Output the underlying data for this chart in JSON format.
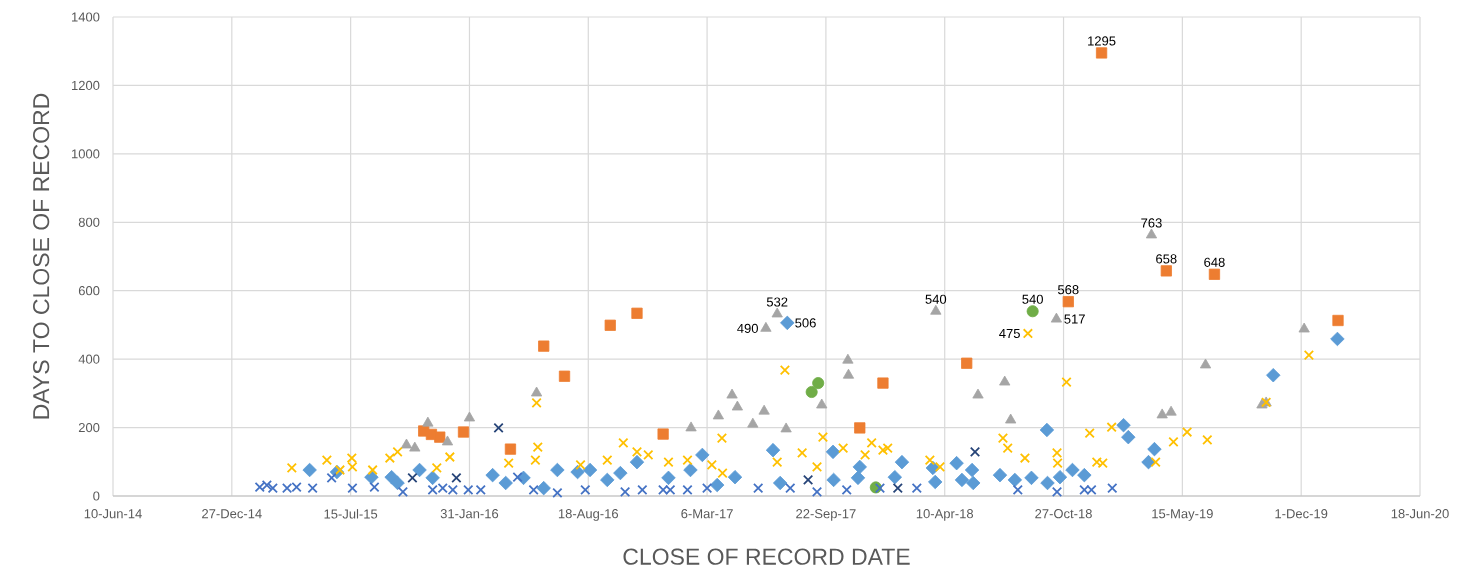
{
  "chart_data": {
    "type": "scatter",
    "xlabel": "CLOSE OF RECORD DATE",
    "ylabel": "DAYS TO CLOSE OF RECORD",
    "xlim": [
      "2014-06-10",
      "2020-06-18"
    ],
    "ylim": [
      0,
      1400
    ],
    "xticks": [
      {
        "value": "2014-06-10",
        "label": "10-Jun-14"
      },
      {
        "value": "2014-12-27",
        "label": "27-Dec-14"
      },
      {
        "value": "2015-07-15",
        "label": "15-Jul-15"
      },
      {
        "value": "2016-01-31",
        "label": "31-Jan-16"
      },
      {
        "value": "2016-08-18",
        "label": "18-Aug-16"
      },
      {
        "value": "2017-03-06",
        "label": "6-Mar-17"
      },
      {
        "value": "2017-09-22",
        "label": "22-Sep-17"
      },
      {
        "value": "2018-04-10",
        "label": "10-Apr-18"
      },
      {
        "value": "2018-10-27",
        "label": "27-Oct-18"
      },
      {
        "value": "2019-05-15",
        "label": "15-May-19"
      },
      {
        "value": "2019-12-01",
        "label": "1-Dec-19"
      },
      {
        "value": "2020-06-18",
        "label": "18-Jun-20"
      }
    ],
    "yticks": [
      0,
      200,
      400,
      600,
      800,
      1000,
      1200,
      1400
    ],
    "grid": true,
    "series": [
      {
        "color": "#5b9bd5",
        "marker": "diamond",
        "x": [
          "2015-05-07",
          "2015-06-22",
          "2015-08-19",
          "2015-09-22",
          "2015-10-02",
          "2015-11-08",
          "2015-11-30",
          "2016-03-10",
          "2016-04-01",
          "2016-05-01",
          "2016-06-04",
          "2016-06-27",
          "2016-07-31",
          "2016-08-21",
          "2016-09-19",
          "2016-10-11",
          "2016-11-08",
          "2016-12-31",
          "2017-02-06",
          "2017-02-26",
          "2017-03-23",
          "2017-04-22",
          "2017-06-25",
          "2017-07-07",
          "2017-07-19",
          "2017-10-04",
          "2017-10-05",
          "2017-11-15",
          "2017-11-18",
          "2018-01-16",
          "2018-01-28",
          "2018-03-21",
          "2018-03-25",
          "2018-04-30",
          "2018-05-09",
          "2018-05-26",
          "2018-05-28",
          "2018-07-12",
          "2018-08-06",
          "2018-09-03",
          "2018-09-29",
          "2018-09-30",
          "2018-10-21",
          "2018-11-11",
          "2018-12-01",
          "2019-02-05",
          "2019-02-13",
          "2019-03-19",
          "2019-03-29",
          "2019-10-15",
          "2020-01-31"
        ],
        "values": [
          76,
          70,
          55,
          55,
          38,
          76,
          53,
          61,
          38,
          53,
          23,
          76,
          70,
          76,
          47,
          67,
          99,
          53,
          76,
          120,
          32,
          55,
          134,
          38,
          506,
          129,
          47,
          53,
          85,
          55,
          99,
          82,
          41,
          96,
          47,
          76,
          38,
          61,
          47,
          53,
          193,
          38,
          55,
          76,
          61,
          207,
          172,
          99,
          137,
          353,
          459
        ],
        "value_labels": [
          null,
          null,
          null,
          null,
          null,
          null,
          null,
          null,
          null,
          null,
          null,
          null,
          null,
          null,
          null,
          null,
          null,
          null,
          null,
          null,
          null,
          null,
          null,
          null,
          "506",
          null,
          null,
          null,
          null,
          null,
          null,
          null,
          null,
          null,
          null,
          null,
          null,
          null,
          null,
          null,
          null,
          null,
          null,
          null,
          null,
          null,
          null,
          null,
          null,
          null,
          null
        ]
      },
      {
        "color": "#ed7d31",
        "marker": "square",
        "x": [
          "2015-11-15",
          "2015-11-28",
          "2015-12-12",
          "2016-01-21",
          "2016-04-09",
          "2016-06-04",
          "2016-07-09",
          "2016-09-24",
          "2016-11-08",
          "2016-12-22",
          "2017-11-18",
          "2017-12-27",
          "2018-05-17",
          "2018-11-04",
          "2018-12-30",
          "2019-04-18",
          "2019-07-08",
          "2020-02-01"
        ],
        "values": [
          190,
          180,
          172,
          187,
          137,
          438,
          350,
          499,
          534,
          181,
          199,
          330,
          388,
          568,
          1295,
          658,
          648,
          513
        ],
        "value_labels": [
          null,
          null,
          null,
          null,
          null,
          null,
          null,
          null,
          null,
          null,
          null,
          null,
          null,
          "568",
          "1295",
          "658",
          "648",
          null
        ]
      },
      {
        "color": "#a5a5a5",
        "marker": "triangle",
        "x": [
          "2015-10-17",
          "2015-10-31",
          "2015-11-22",
          "2015-12-25",
          "2016-01-31",
          "2016-05-23",
          "2017-02-07",
          "2017-03-25",
          "2017-04-17",
          "2017-04-26",
          "2017-05-22",
          "2017-06-10",
          "2017-06-13",
          "2017-07-02",
          "2017-07-17",
          "2017-09-15",
          "2017-10-29",
          "2017-10-30",
          "2018-03-26",
          "2018-06-05",
          "2018-07-20",
          "2018-07-30",
          "2018-10-15",
          "2019-03-24",
          "2019-04-11",
          "2019-04-26",
          "2019-06-23",
          "2019-09-26",
          "2019-10-03",
          "2019-12-06"
        ],
        "values": [
          149,
          140,
          213,
          158,
          228,
          301,
          199,
          234,
          295,
          260,
          210,
          248,
          490,
          532,
          196,
          266,
          397,
          353,
          540,
          295,
          333,
          222,
          517,
          763,
          237,
          245,
          383,
          266,
          272,
          488
        ],
        "value_labels": [
          null,
          null,
          null,
          null,
          null,
          null,
          null,
          null,
          null,
          null,
          null,
          null,
          "490",
          "532",
          null,
          null,
          null,
          null,
          "540",
          null,
          null,
          null,
          "517",
          "763",
          null,
          null,
          null,
          null,
          null,
          null
        ]
      },
      {
        "color": "#ffc000",
        "marker": "cross",
        "x": [
          "2015-04-07",
          "2015-06-05",
          "2015-06-27",
          "2015-07-17",
          "2015-07-18",
          "2015-08-21",
          "2015-09-19",
          "2015-10-02",
          "2015-12-07",
          "2015-12-29",
          "2016-04-06",
          "2016-05-21",
          "2016-05-23",
          "2016-05-25",
          "2016-08-05",
          "2016-09-19",
          "2016-10-16",
          "2016-11-08",
          "2016-11-27",
          "2016-12-31",
          "2017-02-01",
          "2017-03-14",
          "2017-03-31",
          "2017-04-01",
          "2017-07-02",
          "2017-07-15",
          "2017-08-13",
          "2017-09-07",
          "2017-09-17",
          "2017-10-21",
          "2017-11-27",
          "2017-12-08",
          "2017-12-27",
          "2018-01-04",
          "2018-03-16",
          "2018-04-02",
          "2018-07-17",
          "2018-07-25",
          "2018-08-23",
          "2018-08-28",
          "2018-10-16",
          "2018-10-17",
          "2018-11-01",
          "2018-12-10",
          "2018-12-22",
          "2019-01-01",
          "2019-01-16",
          "2019-03-31",
          "2019-04-30",
          "2019-05-23",
          "2019-06-26",
          "2019-10-03",
          "2019-12-14"
        ],
        "values": [
          82,
          105,
          76,
          111,
          85,
          76,
          111,
          129,
          82,
          114,
          96,
          105,
          272,
          143,
          91,
          105,
          155,
          129,
          120,
          99,
          105,
          91,
          169,
          67,
          99,
          368,
          126,
          85,
          172,
          140,
          120,
          155,
          134,
          140,
          105,
          85,
          169,
          140,
          111,
          475,
          126,
          96,
          333,
          184,
          99,
          96,
          201,
          99,
          158,
          187,
          164,
          274,
          412
        ],
        "value_labels": [
          null,
          null,
          null,
          null,
          null,
          null,
          null,
          null,
          null,
          null,
          null,
          null,
          null,
          null,
          null,
          null,
          null,
          null,
          null,
          null,
          null,
          null,
          null,
          null,
          null,
          null,
          null,
          null,
          null,
          null,
          null,
          null,
          null,
          null,
          null,
          null,
          null,
          null,
          null,
          "475",
          null,
          null,
          null,
          null,
          null,
          null,
          null,
          null,
          null,
          null,
          null,
          null,
          null
        ]
      },
      {
        "color": "#70ad47",
        "marker": "circle",
        "x": [
          "2017-08-29",
          "2017-09-09",
          "2017-12-15",
          "2018-09-05"
        ],
        "values": [
          304,
          330,
          25,
          540
        ],
        "value_labels": [
          null,
          null,
          null,
          "540"
        ]
      },
      {
        "color": "#264478",
        "marker": "cross",
        "x": [
          "2015-10-27",
          "2016-01-09",
          "2016-03-20",
          "2017-08-23",
          "2018-01-21",
          "2018-05-31"
        ],
        "values": [
          53,
          53,
          199,
          47,
          23,
          129
        ]
      },
      {
        "color": "#4472c4",
        "marker": "cross",
        "x": [
          "2015-02-12",
          "2015-02-24",
          "2015-03-06",
          "2015-03-30",
          "2015-04-15",
          "2015-05-12",
          "2015-06-13",
          "2015-07-18",
          "2015-08-24",
          "2015-10-11",
          "2015-11-30",
          "2015-12-17",
          "2016-01-03",
          "2016-01-29",
          "2016-02-19",
          "2016-04-21",
          "2016-05-18",
          "2016-06-27",
          "2016-08-13",
          "2016-10-19",
          "2016-11-17",
          "2016-12-22",
          "2017-01-03",
          "2017-02-01",
          "2017-03-06",
          "2017-05-31",
          "2017-07-24",
          "2017-09-07",
          "2017-10-27",
          "2017-12-22",
          "2018-02-22",
          "2018-08-11",
          "2018-10-16",
          "2018-12-01",
          "2018-12-13",
          "2019-01-17"
        ],
        "values": [
          26,
          32,
          23,
          23,
          26,
          23,
          53,
          23,
          26,
          12,
          18,
          23,
          18,
          18,
          18,
          55,
          18,
          9,
          18,
          12,
          18,
          18,
          18,
          18,
          23,
          23,
          23,
          12,
          18,
          23,
          23,
          18,
          12,
          18,
          18,
          23
        ]
      }
    ]
  }
}
